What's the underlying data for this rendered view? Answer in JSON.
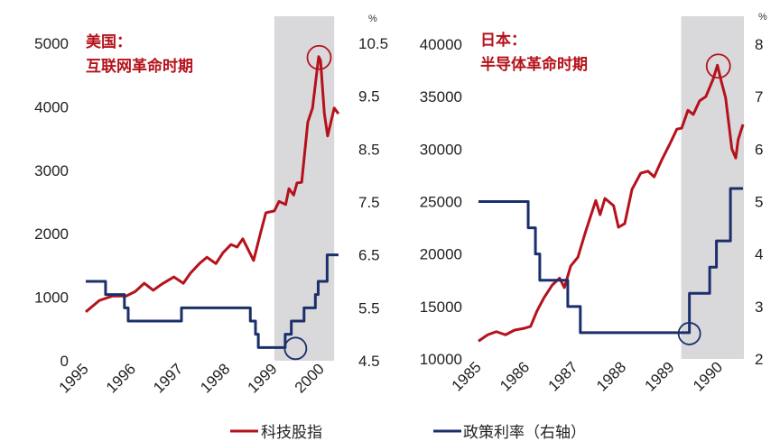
{
  "colors": {
    "stock": "#b5121b",
    "rate": "#1b2f6b",
    "shade": "#d9d9dc"
  },
  "legend": {
    "stock_label": "科技股指",
    "rate_label": "政策利率（右轴）"
  },
  "chart_data": [
    {
      "type": "line",
      "title_line1": "美国：",
      "title_line2": "互联网革命时期",
      "right_unit": "%",
      "xlim": [
        1995,
        2000.4
      ],
      "ylim_left": [
        0,
        5000
      ],
      "ylim_right": [
        4.5,
        10.5
      ],
      "x_ticks": [
        "1995",
        "1996",
        "1997",
        "1998",
        "1999",
        "2000"
      ],
      "y_ticks_left": [
        "0",
        "1000",
        "2000",
        "3000",
        "4000",
        "5000"
      ],
      "y_ticks_right": [
        "4.5",
        "5.5",
        "6.5",
        "7.5",
        "8.5",
        "9.5",
        "10.5"
      ],
      "shaded_period": [
        1999.0,
        2000.27
      ],
      "peak_marker": {
        "x": 1999.95,
        "y": 4790
      },
      "trough_marker": {
        "x": 1999.45,
        "y": 4.75
      },
      "series": [
        {
          "name": "科技股指",
          "axis": "left",
          "style": "line",
          "x": [
            1995.0,
            1995.29,
            1995.57,
            1995.86,
            1996.05,
            1996.24,
            1996.43,
            1996.62,
            1996.87,
            1997.07,
            1997.22,
            1997.41,
            1997.57,
            1997.76,
            1997.91,
            1998.08,
            1998.21,
            1998.33,
            1998.56,
            1998.71,
            1998.82,
            1999.0,
            1999.1,
            1999.24,
            1999.31,
            1999.41,
            1999.48,
            1999.58,
            1999.71,
            1999.81,
            1999.94,
            1999.98,
            2000.06,
            2000.13,
            2000.27,
            2000.36
          ],
          "y": [
            770,
            950,
            1020,
            1020,
            1090,
            1220,
            1110,
            1210,
            1320,
            1220,
            1380,
            1530,
            1630,
            1530,
            1700,
            1830,
            1790,
            1920,
            1580,
            2020,
            2330,
            2360,
            2510,
            2460,
            2710,
            2610,
            2800,
            2810,
            3760,
            3980,
            4790,
            4730,
            3900,
            3540,
            3980,
            3890
          ]
        },
        {
          "name": "政策利率（右轴）",
          "axis": "right",
          "style": "step",
          "x": [
            1995.0,
            1995.42,
            1995.82,
            1995.9,
            1997.03,
            1998.49,
            1998.6,
            1998.66,
            1999.23,
            1999.36,
            1999.63,
            1999.87,
            1999.93,
            2000.12,
            2000.36
          ],
          "y": [
            6.0,
            5.75,
            5.5,
            5.25,
            5.5,
            5.25,
            5.0,
            4.75,
            5.0,
            5.25,
            5.5,
            5.75,
            6.0,
            6.5,
            6.5
          ]
        }
      ]
    },
    {
      "type": "line",
      "title_line1": "日本：",
      "title_line2": "半导体革命时期",
      "right_unit": "%",
      "xlim": [
        1985,
        1990.48
      ],
      "ylim_left": [
        10000,
        40000
      ],
      "ylim_right": [
        2,
        8
      ],
      "x_ticks": [
        "1985",
        "1986",
        "1987",
        "1988",
        "1989",
        "1990"
      ],
      "y_ticks_left": [
        "10000",
        "15000",
        "20000",
        "25000",
        "30000",
        "35000",
        "40000"
      ],
      "y_ticks_right": [
        "2",
        "3",
        "4",
        "5",
        "6",
        "7",
        "8"
      ],
      "shaded_period": [
        1989.2,
        1990.5
      ],
      "peak_marker": {
        "x": 1989.97,
        "y": 38000
      },
      "trough_marker": {
        "x": 1989.37,
        "y": 2.5
      },
      "series": [
        {
          "name": "科技股指",
          "axis": "left",
          "style": "line",
          "x": [
            1985.0,
            1985.19,
            1985.37,
            1985.56,
            1985.75,
            1985.93,
            1986.08,
            1986.21,
            1986.36,
            1986.53,
            1986.68,
            1986.78,
            1986.91,
            1987.06,
            1987.21,
            1987.43,
            1987.52,
            1987.62,
            1987.8,
            1987.9,
            1988.03,
            1988.18,
            1988.36,
            1988.51,
            1988.64,
            1988.79,
            1988.96,
            1989.11,
            1989.21,
            1989.34,
            1989.45,
            1989.58,
            1989.71,
            1989.86,
            1989.95,
            1990.02,
            1990.12,
            1990.25,
            1990.33,
            1990.38,
            1990.48
          ],
          "y": [
            11700,
            12300,
            12600,
            12300,
            12750,
            12900,
            13100,
            14550,
            15850,
            17050,
            17700,
            16800,
            18850,
            19700,
            22000,
            25100,
            23750,
            25300,
            24600,
            22550,
            22900,
            26150,
            27700,
            27900,
            27350,
            28900,
            30450,
            31900,
            32000,
            33700,
            33300,
            34600,
            35000,
            36650,
            38000,
            36650,
            34900,
            30000,
            29150,
            30900,
            32350
          ]
        },
        {
          "name": "政策利率（右轴）",
          "axis": "right",
          "style": "step",
          "x": [
            1985.0,
            1986.03,
            1986.18,
            1986.27,
            1986.85,
            1987.11,
            1989.37,
            1989.79,
            1989.93,
            1990.22,
            1990.48
          ],
          "y": [
            5.0,
            4.5,
            4.0,
            3.5,
            3.0,
            2.5,
            3.25,
            3.75,
            4.25,
            5.25,
            5.25
          ]
        }
      ]
    }
  ]
}
